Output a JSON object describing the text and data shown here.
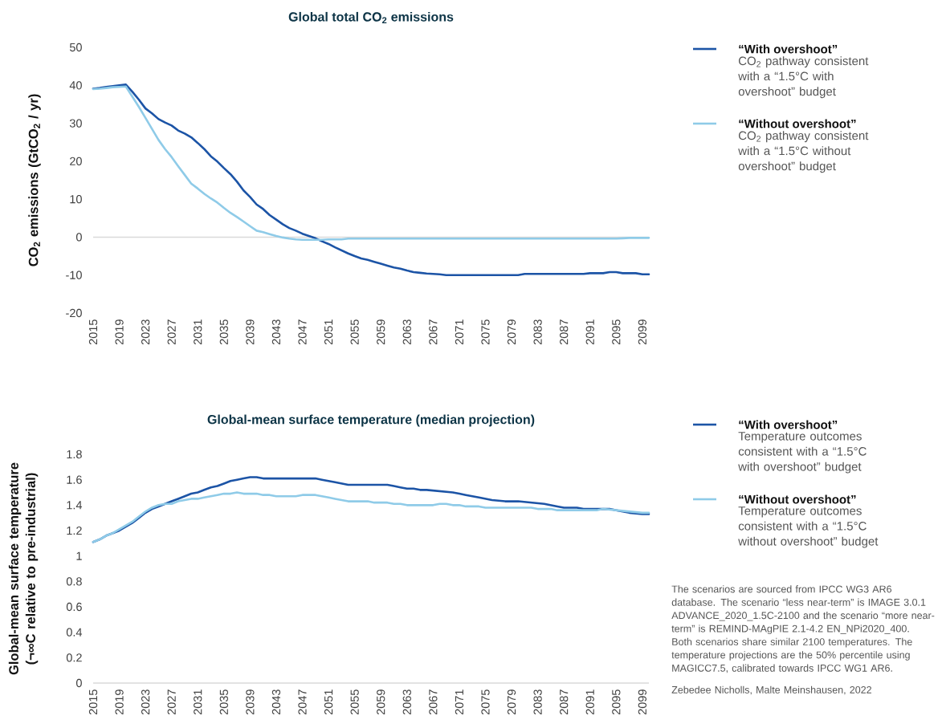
{
  "chart_data": [
    {
      "type": "line",
      "title": "Global total CO$_{2}$ emissions",
      "ylabel": "CO$_{2}$ emissions (GtCO$_{2}$ / yr)",
      "xlim": [
        2015,
        2100
      ],
      "xticks": [
        2015,
        2019,
        2023,
        2027,
        2031,
        2035,
        2039,
        2043,
        2047,
        2051,
        2055,
        2059,
        2063,
        2067,
        2071,
        2075,
        2079,
        2083,
        2087,
        2091,
        2095,
        2099
      ],
      "ylim": [
        -20,
        50
      ],
      "yticks": [
        -20,
        -10,
        0,
        10,
        20,
        30,
        40,
        50
      ],
      "ref_lines": [
        {
          "axis": "y",
          "value": 0,
          "color": "#d9d9d9"
        }
      ],
      "legend": "right",
      "marker": "none",
      "line_style": "solid",
      "series": [
        {
          "name": "“With overshoot”",
          "color": "#1c54a6",
          "x": [
            2015,
            2016,
            2017,
            2018,
            2019,
            2020,
            2021,
            2022,
            2023,
            2024,
            2025,
            2026,
            2027,
            2028,
            2029,
            2030,
            2031,
            2032,
            2033,
            2034,
            2035,
            2036,
            2037,
            2038,
            2039,
            2040,
            2041,
            2042,
            2043,
            2044,
            2045,
            2046,
            2047,
            2048,
            2049,
            2050,
            2051,
            2052,
            2053,
            2054,
            2055,
            2056,
            2057,
            2058,
            2059,
            2060,
            2061,
            2062,
            2063,
            2064,
            2065,
            2066,
            2067,
            2068,
            2069,
            2080,
            2081,
            2090,
            2091,
            2093,
            2094,
            2095,
            2096,
            2098,
            2099,
            2100
          ],
          "values": [
            39.1,
            39.3,
            39.6,
            39.8,
            40.0,
            40.2,
            38.3,
            36.2,
            33.9,
            32.6,
            31.1,
            30.2,
            29.4,
            28.1,
            27.3,
            26.3,
            24.8,
            23.2,
            21.3,
            19.9,
            18.2,
            16.6,
            14.6,
            12.3,
            10.6,
            8.6,
            7.4,
            5.8,
            4.6,
            3.4,
            2.4,
            1.7,
            0.9,
            0.3,
            -0.3,
            -1.1,
            -1.8,
            -2.7,
            -3.5,
            -4.3,
            -5.0,
            -5.6,
            -6.0,
            -6.5,
            -7.0,
            -7.5,
            -8.0,
            -8.3,
            -8.8,
            -9.2,
            -9.4,
            -9.6,
            -9.7,
            -9.8,
            -10.0,
            -10.0,
            -9.7,
            -9.7,
            -9.5,
            -9.5,
            -9.2,
            -9.2,
            -9.5,
            -9.5,
            -9.8,
            -9.8
          ]
        },
        {
          "name": "“Without overshoot”",
          "color": "#8fcbe8",
          "x": [
            2015,
            2016,
            2017,
            2018,
            2019,
            2020,
            2021,
            2022,
            2023,
            2024,
            2025,
            2026,
            2027,
            2028,
            2029,
            2030,
            2031,
            2032,
            2033,
            2034,
            2035,
            2036,
            2037,
            2038,
            2039,
            2040,
            2041,
            2042,
            2043,
            2044,
            2045,
            2046,
            2047,
            2048,
            2049,
            2050,
            2051,
            2052,
            2053,
            2054,
            2095,
            2096,
            2097,
            2100
          ],
          "values": [
            39.0,
            39.1,
            39.3,
            39.5,
            39.6,
            39.7,
            37.0,
            34.3,
            31.4,
            28.5,
            25.6,
            23.2,
            21.1,
            18.7,
            16.4,
            14.1,
            12.8,
            11.4,
            10.2,
            9.1,
            7.7,
            6.4,
            5.3,
            4.1,
            2.9,
            1.7,
            1.3,
            0.8,
            0.3,
            -0.1,
            -0.4,
            -0.6,
            -0.7,
            -0.7,
            -0.7,
            -0.7,
            -0.6,
            -0.6,
            -0.6,
            -0.4,
            -0.4,
            -0.3,
            -0.2,
            -0.2
          ]
        }
      ],
      "annotations": [
        "CO$_{2}$ pathway consistent with a “1.5°C with overshoot” budget",
        "CO$_{2}$ pathway consistent with a “1.5°C without overshoot” budget"
      ]
    },
    {
      "type": "line",
      "title": "Global-mean surface temperature (median projection)",
      "ylabel": "Global-mean surface temperature (¬∞C relative to pre-industrial)",
      "xlim": [
        2015,
        2100
      ],
      "xticks": [
        2015,
        2019,
        2023,
        2027,
        2031,
        2035,
        2039,
        2043,
        2047,
        2051,
        2055,
        2059,
        2063,
        2067,
        2071,
        2075,
        2079,
        2083,
        2087,
        2091,
        2095,
        2099
      ],
      "ylim": [
        0,
        1.8
      ],
      "yticks": [
        0,
        0.2,
        0.4,
        0.6,
        0.8,
        1,
        1.2,
        1.4,
        1.6,
        1.8
      ],
      "legend": "right",
      "marker": "none",
      "line_style": "solid",
      "series": [
        {
          "name": "“With overshoot”",
          "color": "#1c54a6",
          "x": [
            2015,
            2016,
            2017,
            2018,
            2019,
            2020,
            2021,
            2022,
            2023,
            2024,
            2025,
            2026,
            2027,
            2028,
            2029,
            2030,
            2031,
            2032,
            2033,
            2034,
            2035,
            2036,
            2037,
            2038,
            2039,
            2040,
            2041,
            2049,
            2050,
            2051,
            2052,
            2053,
            2054,
            2060,
            2061,
            2062,
            2063,
            2064,
            2065,
            2066,
            2068,
            2070,
            2071,
            2072,
            2074,
            2076,
            2078,
            2080,
            2082,
            2084,
            2086,
            2087,
            2089,
            2090,
            2094,
            2095,
            2096,
            2097,
            2099,
            2100
          ],
          "values": [
            1.11,
            1.13,
            1.16,
            1.18,
            1.2,
            1.23,
            1.26,
            1.3,
            1.34,
            1.37,
            1.39,
            1.41,
            1.43,
            1.45,
            1.47,
            1.49,
            1.5,
            1.52,
            1.54,
            1.55,
            1.57,
            1.59,
            1.6,
            1.61,
            1.62,
            1.62,
            1.61,
            1.61,
            1.6,
            1.59,
            1.58,
            1.57,
            1.56,
            1.56,
            1.55,
            1.54,
            1.53,
            1.53,
            1.52,
            1.52,
            1.51,
            1.5,
            1.49,
            1.48,
            1.46,
            1.44,
            1.43,
            1.43,
            1.42,
            1.41,
            1.39,
            1.38,
            1.38,
            1.37,
            1.37,
            1.36,
            1.35,
            1.34,
            1.33,
            1.33
          ]
        },
        {
          "name": "“Without overshoot”",
          "color": "#8fcbe8",
          "x": [
            2015,
            2016,
            2017,
            2018,
            2019,
            2020,
            2021,
            2022,
            2023,
            2024,
            2025,
            2026,
            2027,
            2028,
            2029,
            2030,
            2031,
            2032,
            2033,
            2034,
            2035,
            2036,
            2037,
            2038,
            2040,
            2041,
            2042,
            2043,
            2046,
            2047,
            2049,
            2050,
            2051,
            2052,
            2053,
            2054,
            2057,
            2058,
            2060,
            2061,
            2062,
            2063,
            2067,
            2068,
            2069,
            2070,
            2071,
            2072,
            2074,
            2075,
            2082,
            2083,
            2085,
            2086,
            2092,
            2093,
            2095,
            2097,
            2099,
            2100
          ],
          "values": [
            1.11,
            1.13,
            1.16,
            1.18,
            1.21,
            1.24,
            1.27,
            1.31,
            1.35,
            1.38,
            1.4,
            1.41,
            1.41,
            1.43,
            1.44,
            1.45,
            1.45,
            1.46,
            1.47,
            1.48,
            1.49,
            1.49,
            1.5,
            1.49,
            1.49,
            1.48,
            1.48,
            1.47,
            1.47,
            1.48,
            1.48,
            1.47,
            1.46,
            1.45,
            1.44,
            1.43,
            1.43,
            1.42,
            1.42,
            1.41,
            1.41,
            1.4,
            1.4,
            1.41,
            1.41,
            1.4,
            1.4,
            1.39,
            1.39,
            1.38,
            1.38,
            1.37,
            1.37,
            1.36,
            1.36,
            1.37,
            1.36,
            1.35,
            1.34,
            1.34
          ]
        }
      ],
      "annotations": [
        "Temperature outcomes consistent with a “1.5°C with overshoot” budget",
        "Temperature outcomes consistent with a “1.5°C without overshoot” budget",
        "The scenarios are sourced from IPCC WG3 AR6 database. The scenario “less near-term” is IMAGE 3.0.1 ADVANCE_2020_1.5C-2100 and the scenario “more near-term” is REMIND-MAgPIE 2.1-4.2 EN_NPi2020_400. Both scenarios share similar 2100 temperatures. The temperature projections are the 50% percentile using MAGICC7.5, calibrated towards IPCC WG1 AR6.",
        "Zebedee Nicholls, Malte Meinshausen, 2022"
      ]
    }
  ]
}
